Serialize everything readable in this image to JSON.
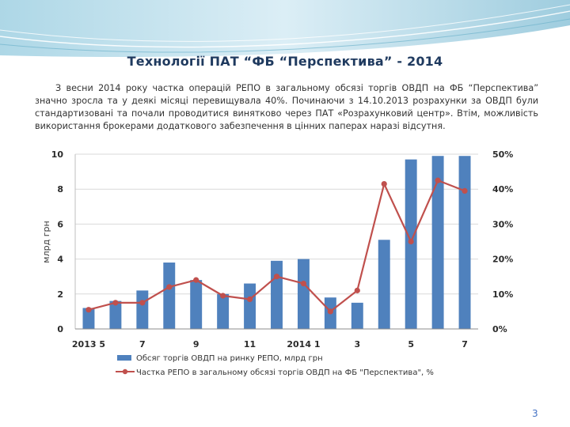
{
  "slide": {
    "title": "Технології ПАТ “ФБ “Перспектива” - 2014",
    "paragraph": "З весни 2014 року частка операцій РЕПО в загальному обсязі торгів ОВДП на ФБ “Перспектива” значно зросла та у деякі місяці перевищувала 40%. Починаючи з 14.10.2013 розрахунки за ОВДП були стандартизовані та почали проводитися винятково через ПАТ «Розрахунковий центр». Втім, можливість використання брокерами додаткового забезпечення в цінних паперах наразі відсутня.",
    "page_number": "3"
  },
  "colors": {
    "bar": "#4f81bd",
    "line": "#c0504d",
    "grid": "#d9d9d9",
    "banner_light": "#dbeef6",
    "banner_dark": "#8fc7dc"
  },
  "chart_data": {
    "type": "bar",
    "x_tick_labels": [
      "2013 5",
      "",
      "7",
      "",
      "9",
      "",
      "11",
      "",
      "2014 1",
      "",
      "3",
      "",
      "5",
      "",
      "7"
    ],
    "ylabel": "млрд грн",
    "ylim": [
      0,
      10
    ],
    "y_ticks": [
      "0",
      "2",
      "4",
      "6",
      "8",
      "10"
    ],
    "y2lim": [
      0,
      50
    ],
    "y2_ticks": [
      "0%",
      "10%",
      "20%",
      "30%",
      "40%",
      "50%"
    ],
    "grid": true,
    "legend_position": "bottom",
    "series": [
      {
        "name": "Обсяг торгів ОВДП на ринку РЕПО, млрд грн",
        "type": "bar",
        "axis": "left",
        "values": [
          1.2,
          1.6,
          2.2,
          3.8,
          2.8,
          2.0,
          2.6,
          3.9,
          4.0,
          1.8,
          1.5,
          5.1,
          9.7,
          9.9,
          9.9
        ]
      },
      {
        "name": "Частка РЕПО в загальному обсязі торгів ОВДП на ФБ \"Перспектива\", %",
        "type": "line",
        "axis": "right",
        "values": [
          5.5,
          7.5,
          7.5,
          12,
          14,
          9.5,
          8.5,
          15,
          13,
          5,
          11,
          41.5,
          25,
          42.5,
          39.5
        ]
      }
    ]
  }
}
